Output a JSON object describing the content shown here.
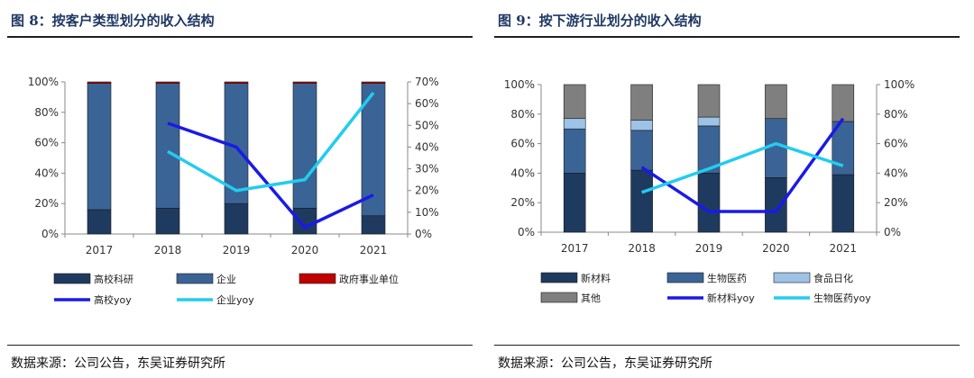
{
  "panels": [
    {
      "title": "图 8：按客户类型划分的收入结构",
      "source": "数据来源：公司公告，东吴证券研究所"
    },
    {
      "title": "图 9：按下游行业划分的收入结构",
      "source": "数据来源：公司公告，东吴证券研究所"
    }
  ],
  "chart_data": [
    {
      "type": "bar",
      "stacked": true,
      "categories": [
        "2017",
        "2018",
        "2019",
        "2020",
        "2021"
      ],
      "left_ticks": [
        "0%",
        "20%",
        "40%",
        "60%",
        "80%",
        "100%"
      ],
      "right_ticks": [
        "0%",
        "10%",
        "20%",
        "30%",
        "40%",
        "50%",
        "60%",
        "70%"
      ],
      "ylim": [
        0,
        100
      ],
      "y2lim": [
        0,
        70
      ],
      "series": [
        {
          "name": "高校科研",
          "color": "#1f3a5f",
          "values": [
            16,
            17,
            20,
            17,
            12
          ]
        },
        {
          "name": "企业",
          "color": "#3a6496",
          "values": [
            83,
            82,
            79,
            82,
            87
          ]
        },
        {
          "name": "政府事业单位",
          "color": "#c00000",
          "values": [
            1,
            1,
            1,
            1,
            1
          ]
        }
      ],
      "lines": [
        {
          "name": "高校yoy",
          "color": "#1a1ae6",
          "x": [
            "2018",
            "2019",
            "2020",
            "2021"
          ],
          "values": [
            51,
            40,
            3,
            18
          ]
        },
        {
          "name": "企业yoy",
          "color": "#22ccf0",
          "x": [
            "2018",
            "2019",
            "2020",
            "2021"
          ],
          "values": [
            38,
            20,
            25,
            65
          ]
        }
      ],
      "legend_position": "bottom"
    },
    {
      "type": "bar",
      "stacked": true,
      "categories": [
        "2017",
        "2018",
        "2019",
        "2020",
        "2021"
      ],
      "left_ticks": [
        "0%",
        "20%",
        "40%",
        "60%",
        "80%",
        "100%"
      ],
      "right_ticks": [
        "0%",
        "20%",
        "40%",
        "60%",
        "80%",
        "100%"
      ],
      "ylim": [
        0,
        100
      ],
      "y2lim": [
        0,
        100
      ],
      "series": [
        {
          "name": "新材料",
          "color": "#1f3a5f",
          "values": [
            40,
            42,
            40,
            37,
            39
          ]
        },
        {
          "name": "生物医药",
          "color": "#3a6496",
          "values": [
            30,
            27,
            32,
            40,
            36
          ]
        },
        {
          "name": "食品日化",
          "color": "#9dc3e6",
          "values": [
            7,
            7,
            6,
            0,
            0
          ]
        },
        {
          "name": "其他",
          "color": "#7f7f7f",
          "values": [
            23,
            24,
            22,
            23,
            25
          ]
        }
      ],
      "lines": [
        {
          "name": "新材料yoy",
          "color": "#1a1ae6",
          "x": [
            "2018",
            "2019",
            "2020",
            "2021"
          ],
          "values": [
            44,
            14,
            14,
            77
          ]
        },
        {
          "name": "生物医药yoy",
          "color": "#22ccf0",
          "x": [
            "2018",
            "2019",
            "2020",
            "2021"
          ],
          "values": [
            27,
            43,
            60,
            45
          ]
        }
      ],
      "legend_position": "bottom"
    }
  ]
}
